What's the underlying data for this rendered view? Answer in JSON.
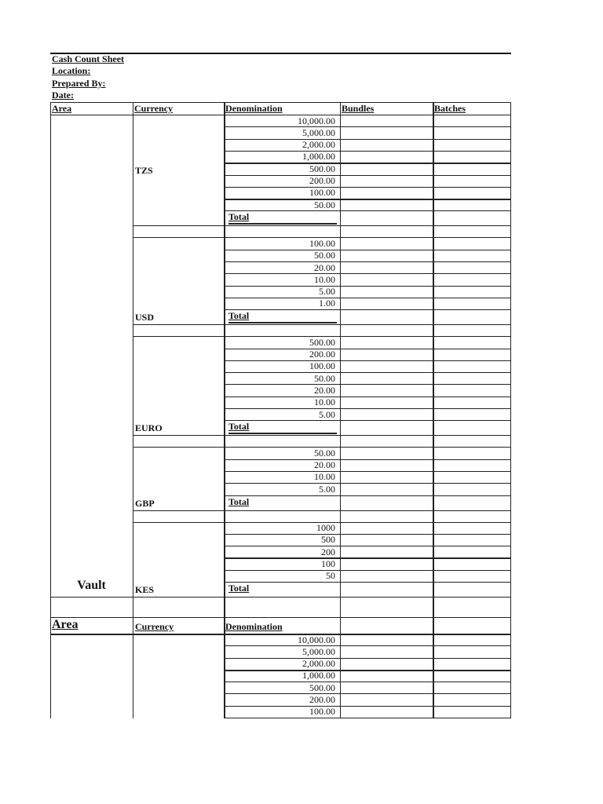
{
  "title": "Cash Count Sheet",
  "fields": {
    "location": "Location:",
    "prepared_by": "Prepared By:",
    "date": "Date:"
  },
  "columns": {
    "area": "Area",
    "currency": "Currency",
    "denomination": "Denomination",
    "bundles": "Bundles",
    "batches": "Batches"
  },
  "total_label": "Total",
  "area_name": "Vault",
  "groups": [
    {
      "currency": "TZS",
      "denominations": [
        "10,000.00",
        "5,000.00",
        "2,000.00",
        "1,000.00",
        "500.00",
        "200.00",
        "100.00",
        "50.00"
      ]
    },
    {
      "currency": "USD",
      "denominations": [
        "100.00",
        "50.00",
        "20.00",
        "10.00",
        "5.00",
        "1.00"
      ]
    },
    {
      "currency": "EURO",
      "denominations": [
        "500.00",
        "200.00",
        "100.00",
        "50.00",
        "20.00",
        "10.00",
        "5.00"
      ]
    },
    {
      "currency": "GBP",
      "denominations": [
        "50.00",
        "20.00",
        "10.00",
        "5.00"
      ]
    },
    {
      "currency": "KES",
      "denominations": [
        "1000",
        "500",
        "200",
        "100",
        "50"
      ]
    }
  ],
  "second_section": {
    "area": "Area",
    "currency": "Currency",
    "denomination": "Denomination",
    "denominations": [
      "10,000.00",
      "5,000.00",
      "2,000.00",
      "1,000.00",
      "500.00",
      "200.00",
      "100.00"
    ]
  }
}
